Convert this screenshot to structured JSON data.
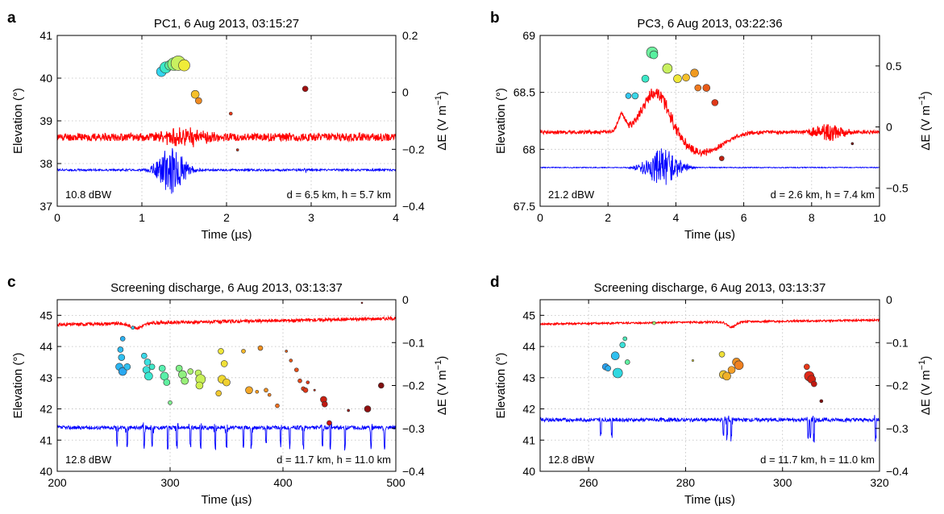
{
  "chart_data": [
    {
      "panel_label": "a",
      "type": "scatter",
      "title": "PC1, 6 Aug 2013, 03:15:27",
      "xlabel": "Time (µs)",
      "ylabel_left": "Elevation (°)",
      "ylabel_right_pre": "ΔE (V m",
      "ylabel_right_sup": "−1",
      "ylabel_right_post": ")",
      "xlim": [
        0,
        4
      ],
      "ylim_left": [
        37,
        41
      ],
      "ylim_right": [
        -0.4,
        0.2
      ],
      "xticks": [
        0,
        1,
        2,
        3,
        4
      ],
      "xtick_labels": [
        "0",
        "1",
        "2",
        "3",
        "4"
      ],
      "yticks_left": [
        37,
        38,
        39,
        40,
        41
      ],
      "ytick_labels_left": [
        "37",
        "38",
        "39",
        "40",
        "41"
      ],
      "yticks_right": [
        -0.4,
        -0.2,
        0,
        0.2
      ],
      "ytick_labels_right": [
        "−0.4",
        "−0.2",
        "0",
        "0.2"
      ],
      "grid": true,
      "annotation_left": "10.8 dBW",
      "annotation_right": "d = 6.5 km, h = 5.7 km",
      "sources": [
        {
          "t": 1.23,
          "el": 40.15,
          "size": 6,
          "color": "#33d6f0"
        },
        {
          "t": 1.28,
          "el": 40.25,
          "size": 7,
          "color": "#3be8c8"
        },
        {
          "t": 1.33,
          "el": 40.3,
          "size": 6,
          "color": "#58f0a0"
        },
        {
          "t": 1.38,
          "el": 40.33,
          "size": 8,
          "color": "#8ff07a"
        },
        {
          "t": 1.43,
          "el": 40.35,
          "size": 9,
          "color": "#c8f060"
        },
        {
          "t": 1.5,
          "el": 40.3,
          "size": 7,
          "color": "#f0ec38"
        },
        {
          "t": 1.63,
          "el": 39.62,
          "size": 5,
          "color": "#f5c02a"
        },
        {
          "t": 1.67,
          "el": 39.47,
          "size": 4,
          "color": "#f08a20"
        },
        {
          "t": 2.05,
          "el": 39.17,
          "size": 2,
          "color": "#e83818"
        },
        {
          "t": 2.13,
          "el": 38.32,
          "size": 1.5,
          "color": "#d02a10"
        },
        {
          "t": 2.93,
          "el": 39.75,
          "size": 3.5,
          "color": "#a01010"
        }
      ],
      "waveforms": [
        {
          "color": "#ff0000",
          "baseline": 38.62,
          "amp": 0.09,
          "burst_amp": 0.18,
          "burst_center": 1.5,
          "burst_width": 0.3,
          "bump_amp": 0.0,
          "bump_center": 0,
          "bump_width": 1,
          "seed": 11
        },
        {
          "color": "#0000ff",
          "baseline": 37.85,
          "amp": 0.025,
          "burst_amp": 0.55,
          "burst_center": 1.35,
          "burst_width": 0.18,
          "bump_amp": 0.0,
          "bump_center": 0,
          "bump_width": 1,
          "seed": 7,
          "extra_burst": {
            "center": 2.93,
            "width": 0.02,
            "amp": 0.1
          }
        }
      ]
    },
    {
      "panel_label": "b",
      "type": "scatter",
      "title": "PC3, 6 Aug 2013, 03:22:36",
      "xlabel": "Time (µs)",
      "ylabel_left": "Elevation (°)",
      "ylabel_right_pre": "ΔE (V m",
      "ylabel_right_sup": "−1",
      "ylabel_right_post": ")",
      "xlim": [
        0,
        10
      ],
      "ylim_left": [
        67.5,
        69
      ],
      "ylim_right": [
        -0.65,
        0.75
      ],
      "xticks": [
        0,
        2,
        4,
        6,
        8,
        10
      ],
      "xtick_labels": [
        "0",
        "2",
        "4",
        "6",
        "8",
        "10"
      ],
      "yticks_left": [
        67.5,
        68,
        68.5,
        69
      ],
      "ytick_labels_left": [
        "67.5",
        "68",
        "68.5",
        "69"
      ],
      "yticks_right": [
        -0.5,
        0,
        0.5
      ],
      "ytick_labels_right": [
        "−0.5",
        "0",
        "0.5"
      ],
      "grid": true,
      "annotation_left": "21.2 dBW",
      "annotation_right": "d = 2.6 km, h = 7.4 km",
      "sources": [
        {
          "t": 2.6,
          "el": 68.47,
          "size": 3.5,
          "color": "#33c8f0"
        },
        {
          "t": 2.8,
          "el": 68.47,
          "size": 4,
          "color": "#3bd8e8"
        },
        {
          "t": 3.1,
          "el": 68.62,
          "size": 4.5,
          "color": "#3be8c8"
        },
        {
          "t": 3.3,
          "el": 68.85,
          "size": 7,
          "color": "#70f0a0"
        },
        {
          "t": 3.35,
          "el": 68.83,
          "size": 5,
          "color": "#58f0a0"
        },
        {
          "t": 3.75,
          "el": 68.71,
          "size": 6,
          "color": "#c8f060"
        },
        {
          "t": 4.05,
          "el": 68.62,
          "size": 5,
          "color": "#f0e838"
        },
        {
          "t": 4.3,
          "el": 68.63,
          "size": 4.5,
          "color": "#f5c02a"
        },
        {
          "t": 4.55,
          "el": 68.67,
          "size": 5,
          "color": "#f09a20"
        },
        {
          "t": 4.65,
          "el": 68.54,
          "size": 4,
          "color": "#f07a20"
        },
        {
          "t": 4.9,
          "el": 68.54,
          "size": 4.5,
          "color": "#e85a18"
        },
        {
          "t": 5.15,
          "el": 68.41,
          "size": 4,
          "color": "#e03818"
        },
        {
          "t": 5.35,
          "el": 67.92,
          "size": 3,
          "color": "#c02010"
        },
        {
          "t": 9.2,
          "el": 68.05,
          "size": 1.5,
          "color": "#800808"
        }
      ],
      "waveforms": [
        {
          "color": "#ff0000",
          "baseline": 68.15,
          "amp": 0.015,
          "burst_amp": 0.05,
          "burst_center": 3.8,
          "burst_width": 1.2,
          "bump_amp": 0.35,
          "bump_center": 3.4,
          "bump_width": 0.55,
          "seed": 21,
          "pre_bump": {
            "center": 2.4,
            "width": 0.15,
            "amp": 0.15
          },
          "dip": {
            "center": 4.8,
            "width": 0.8,
            "amp": -0.18
          },
          "tail_burst": {
            "center": 8.5,
            "width": 0.5,
            "amp": 0.07
          }
        },
        {
          "color": "#0000ff",
          "baseline": 67.84,
          "amp": 0.004,
          "burst_amp": 0.17,
          "burst_center": 3.6,
          "burst_width": 0.55,
          "bump_amp": 0.0,
          "bump_center": 0,
          "bump_width": 1,
          "seed": 23
        }
      ]
    },
    {
      "panel_label": "c",
      "type": "scatter",
      "title": "Screening discharge, 6 Aug 2013, 03:13:37",
      "xlabel": "Time (µs)",
      "ylabel_left": "Elevation (°)",
      "ylabel_right_pre": "ΔE (V m",
      "ylabel_right_sup": "−1",
      "ylabel_right_post": ")",
      "xlim": [
        200,
        500
      ],
      "ylim_left": [
        40,
        45.5
      ],
      "ylim_right": [
        -0.4,
        0
      ],
      "xticks": [
        200,
        300,
        400,
        500
      ],
      "xtick_labels": [
        "200",
        "300",
        "400",
        "500"
      ],
      "yticks_left": [
        40,
        41,
        42,
        43,
        44,
        45
      ],
      "ytick_labels_left": [
        "40",
        "41",
        "42",
        "43",
        "44",
        "45"
      ],
      "yticks_right": [
        -0.4,
        -0.3,
        -0.2,
        -0.1,
        0
      ],
      "ytick_labels_right": [
        "−0.4",
        "−0.3",
        "−0.2",
        "−0.1",
        "0"
      ],
      "grid": true,
      "annotation_left": "12.8 dBW",
      "annotation_right": "d = 11.7 km, h = 11.0 km",
      "sources": [
        {
          "t": 258,
          "el": 44.25,
          "size": 3,
          "color": "#2ab0f0"
        },
        {
          "t": 256,
          "el": 43.9,
          "size": 3.5,
          "color": "#30bcf0"
        },
        {
          "t": 257,
          "el": 43.65,
          "size": 4,
          "color": "#30c0f0"
        },
        {
          "t": 255,
          "el": 43.35,
          "size": 4.5,
          "color": "#2ab4f0"
        },
        {
          "t": 258,
          "el": 43.2,
          "size": 5,
          "color": "#2aa8f0"
        },
        {
          "t": 262,
          "el": 43.35,
          "size": 4,
          "color": "#30c0f0"
        },
        {
          "t": 267,
          "el": 44.6,
          "size": 2,
          "color": "#30c8f0"
        },
        {
          "t": 277,
          "el": 43.7,
          "size": 3.5,
          "color": "#3bd8e8"
        },
        {
          "t": 280,
          "el": 43.5,
          "size": 4,
          "color": "#3be0e0"
        },
        {
          "t": 279,
          "el": 43.25,
          "size": 4.5,
          "color": "#3be0d8"
        },
        {
          "t": 281,
          "el": 43.05,
          "size": 5,
          "color": "#3be8d0"
        },
        {
          "t": 284,
          "el": 43.35,
          "size": 3.5,
          "color": "#40e8c8"
        },
        {
          "t": 293,
          "el": 43.3,
          "size": 4,
          "color": "#58f0b0"
        },
        {
          "t": 295,
          "el": 43.05,
          "size": 5,
          "color": "#58f0a8"
        },
        {
          "t": 297,
          "el": 42.85,
          "size": 4,
          "color": "#60f0a0"
        },
        {
          "t": 300,
          "el": 42.2,
          "size": 2.5,
          "color": "#80f090"
        },
        {
          "t": 308,
          "el": 43.3,
          "size": 4,
          "color": "#80f088"
        },
        {
          "t": 311,
          "el": 43.1,
          "size": 5,
          "color": "#90f080"
        },
        {
          "t": 313,
          "el": 42.9,
          "size": 4.5,
          "color": "#98f078"
        },
        {
          "t": 318,
          "el": 43.2,
          "size": 3.5,
          "color": "#a8f070"
        },
        {
          "t": 325,
          "el": 43.15,
          "size": 4,
          "color": "#c0f060"
        },
        {
          "t": 327,
          "el": 42.95,
          "size": 6,
          "color": "#c8f058"
        },
        {
          "t": 326,
          "el": 42.75,
          "size": 4.5,
          "color": "#d0f050"
        },
        {
          "t": 345,
          "el": 43.85,
          "size": 3.5,
          "color": "#f0e838"
        },
        {
          "t": 348,
          "el": 43.45,
          "size": 4,
          "color": "#f0e038"
        },
        {
          "t": 346,
          "el": 42.95,
          "size": 5,
          "color": "#f0d830"
        },
        {
          "t": 350,
          "el": 42.85,
          "size": 4.5,
          "color": "#f0d030"
        },
        {
          "t": 343,
          "el": 42.5,
          "size": 3.5,
          "color": "#f0c830"
        },
        {
          "t": 365,
          "el": 43.85,
          "size": 2.5,
          "color": "#f5b82a"
        },
        {
          "t": 370,
          "el": 42.6,
          "size": 4.5,
          "color": "#f5a828"
        },
        {
          "t": 377,
          "el": 42.55,
          "size": 2,
          "color": "#f59a20"
        },
        {
          "t": 385,
          "el": 42.6,
          "size": 2.5,
          "color": "#f09020"
        },
        {
          "t": 380,
          "el": 43.95,
          "size": 3,
          "color": "#f09020"
        },
        {
          "t": 388,
          "el": 42.45,
          "size": 2,
          "color": "#f08020"
        },
        {
          "t": 395,
          "el": 42.1,
          "size": 2.5,
          "color": "#f07020"
        },
        {
          "t": 403,
          "el": 43.85,
          "size": 1.5,
          "color": "#e86018"
        },
        {
          "t": 407,
          "el": 43.55,
          "size": 2,
          "color": "#e85818"
        },
        {
          "t": 412,
          "el": 43.25,
          "size": 2.5,
          "color": "#e85018"
        },
        {
          "t": 415,
          "el": 42.9,
          "size": 2.5,
          "color": "#e84818"
        },
        {
          "t": 418,
          "el": 42.65,
          "size": 2.5,
          "color": "#e04018"
        },
        {
          "t": 420,
          "el": 42.6,
          "size": 3,
          "color": "#e03818"
        },
        {
          "t": 422,
          "el": 42.85,
          "size": 2,
          "color": "#e03818"
        },
        {
          "t": 428,
          "el": 42.6,
          "size": 1.2,
          "color": "#d02a10"
        },
        {
          "t": 436,
          "el": 42.3,
          "size": 4,
          "color": "#c82010"
        },
        {
          "t": 437,
          "el": 42.15,
          "size": 3.5,
          "color": "#c01810"
        },
        {
          "t": 441,
          "el": 41.55,
          "size": 3,
          "color": "#d01010"
        },
        {
          "t": 458,
          "el": 41.95,
          "size": 1.5,
          "color": "#a81010"
        },
        {
          "t": 475,
          "el": 42.0,
          "size": 4,
          "color": "#901010"
        },
        {
          "t": 487,
          "el": 42.75,
          "size": 3.5,
          "color": "#801010"
        },
        {
          "t": 470,
          "el": 45.4,
          "size": 1,
          "color": "#b01010"
        }
      ],
      "waveforms": [
        {
          "color": "#ff0000",
          "baseline": 44.7,
          "amp": 0.05,
          "burst_amp": 0.0,
          "burst_center": 0,
          "burst_width": 1,
          "bump_amp": 0.0,
          "bump_center": 0,
          "bump_width": 1,
          "seed": 31,
          "slope": 0.4,
          "dip": {
            "center": 270,
            "width": 8,
            "amp": -0.15
          }
        },
        {
          "color": "#0000ff",
          "baseline": 41.4,
          "amp": 0.06,
          "burst_amp": 0.0,
          "burst_center": 0,
          "burst_width": 1,
          "bump_amp": 0.0,
          "bump_center": 0,
          "bump_width": 1,
          "seed": 37,
          "spikes": [
            253,
            262,
            277,
            284,
            298,
            306,
            318,
            327,
            340,
            350,
            365,
            372,
            385,
            398,
            406,
            418,
            435,
            442,
            455,
            478,
            490
          ]
        }
      ]
    },
    {
      "panel_label": "d",
      "type": "scatter",
      "title": "Screening discharge, 6 Aug 2013, 03:13:37",
      "xlabel": "Time (µs)",
      "ylabel_left": "Elevation (°)",
      "ylabel_right_pre": "ΔE (V m",
      "ylabel_right_sup": "−1",
      "ylabel_right_post": ")",
      "xlim": [
        250,
        320
      ],
      "ylim_left": [
        40,
        45.5
      ],
      "ylim_right": [
        -0.4,
        0
      ],
      "xticks": [
        260,
        280,
        300,
        320
      ],
      "xtick_labels": [
        "260",
        "280",
        "300",
        "320"
      ],
      "yticks_left": [
        40,
        41,
        42,
        43,
        44,
        45
      ],
      "ytick_labels_left": [
        "40",
        "41",
        "42",
        "43",
        "44",
        "45"
      ],
      "yticks_right": [
        -0.4,
        -0.3,
        -0.2,
        -0.1,
        0
      ],
      "ytick_labels_right": [
        "−0.4",
        "−0.3",
        "−0.2",
        "−0.1",
        "0"
      ],
      "grid": true,
      "annotation_left": "12.8 dBW",
      "annotation_right": "d = 11.7 km, h = 11.0 km",
      "sources": [
        {
          "t": 263.5,
          "el": 43.35,
          "size": 4,
          "color": "#2aa0f0"
        },
        {
          "t": 264,
          "el": 43.3,
          "size": 3.5,
          "color": "#2ab0f0"
        },
        {
          "t": 265.5,
          "el": 43.7,
          "size": 5,
          "color": "#30c0f0"
        },
        {
          "t": 266,
          "el": 43.15,
          "size": 6,
          "color": "#30d8e0"
        },
        {
          "t": 267,
          "el": 44.05,
          "size": 3.5,
          "color": "#3be0d8"
        },
        {
          "t": 267.5,
          "el": 44.25,
          "size": 2.5,
          "color": "#50e8b8"
        },
        {
          "t": 268,
          "el": 43.5,
          "size": 3,
          "color": "#60f0a0"
        },
        {
          "t": 273.5,
          "el": 44.75,
          "size": 2,
          "color": "#a8f070"
        },
        {
          "t": 281.5,
          "el": 43.55,
          "size": 1.2,
          "color": "#e8e040"
        },
        {
          "t": 287.5,
          "el": 43.75,
          "size": 3.5,
          "color": "#f0e038"
        },
        {
          "t": 287.8,
          "el": 43.1,
          "size": 5,
          "color": "#f0c830"
        },
        {
          "t": 288.5,
          "el": 43.05,
          "size": 5,
          "color": "#f0b028"
        },
        {
          "t": 289.5,
          "el": 43.25,
          "size": 4.5,
          "color": "#f5a028"
        },
        {
          "t": 290.5,
          "el": 43.5,
          "size": 5,
          "color": "#f09020"
        },
        {
          "t": 291,
          "el": 43.4,
          "size": 5.5,
          "color": "#f08020"
        },
        {
          "t": 305,
          "el": 43.35,
          "size": 3.5,
          "color": "#e83818"
        },
        {
          "t": 305.5,
          "el": 43.05,
          "size": 6,
          "color": "#e02818"
        },
        {
          "t": 306,
          "el": 42.95,
          "size": 5,
          "color": "#d02010"
        },
        {
          "t": 306.5,
          "el": 42.8,
          "size": 3.5,
          "color": "#c01810"
        },
        {
          "t": 308,
          "el": 42.25,
          "size": 2,
          "color": "#801010"
        }
      ],
      "waveforms": [
        {
          "color": "#ff0000",
          "baseline": 44.72,
          "amp": 0.03,
          "burst_amp": 0.0,
          "burst_center": 0,
          "burst_width": 1,
          "bump_amp": 0.0,
          "bump_center": 0,
          "bump_width": 1,
          "seed": 41,
          "slope": 0.25,
          "dip": {
            "center": 289.5,
            "width": 1.2,
            "amp": -0.17
          }
        },
        {
          "color": "#0000ff",
          "baseline": 41.65,
          "amp": 0.06,
          "burst_amp": 0.0,
          "burst_center": 0,
          "burst_width": 1,
          "bump_amp": 0.0,
          "bump_center": 0,
          "bump_width": 1,
          "seed": 43,
          "spikes": [
            262.5,
            264.8,
            287.8,
            288.6,
            289.4,
            305.3,
            305.8,
            306.5,
            319.2
          ]
        }
      ]
    }
  ]
}
